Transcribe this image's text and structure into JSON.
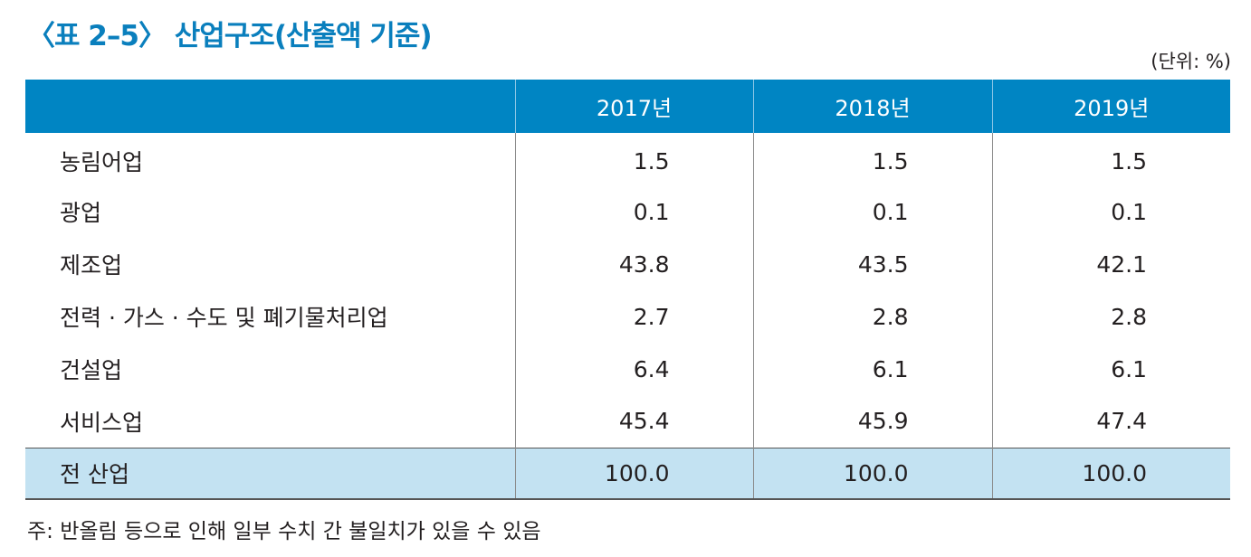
{
  "title": "〈표 2–5〉 산업구조(산출액 기준)",
  "unit": "(단위: %)",
  "table": {
    "headers": [
      "",
      "2017년",
      "2018년",
      "2019년"
    ],
    "rows": [
      {
        "label": "농림어업",
        "values": [
          "1.5",
          "1.5",
          "1.5"
        ]
      },
      {
        "label": "광업",
        "values": [
          "0.1",
          "0.1",
          "0.1"
        ]
      },
      {
        "label": "제조업",
        "values": [
          "43.8",
          "43.5",
          "42.1"
        ]
      },
      {
        "label": "전력 · 가스 · 수도 및 폐기물처리업",
        "values": [
          "2.7",
          "2.8",
          "2.8"
        ]
      },
      {
        "label": "건설업",
        "values": [
          "6.4",
          "6.1",
          "6.1"
        ]
      },
      {
        "label": "서비스업",
        "values": [
          "45.4",
          "45.9",
          "47.4"
        ]
      }
    ],
    "total": {
      "label": "전 산업",
      "values": [
        "100.0",
        "100.0",
        "100.0"
      ]
    }
  },
  "note": "주: 반올림 등으로 인해 일부 수치 간 불일치가 있을 수 있음",
  "colors": {
    "title": "#0a7fbd",
    "header_bg": "#0085c3",
    "total_bg": "#c3e2f2"
  }
}
